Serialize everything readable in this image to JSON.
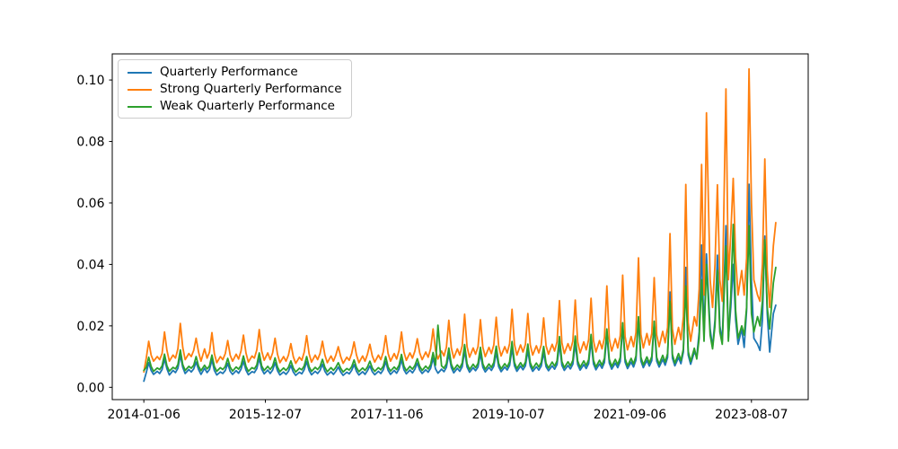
{
  "chart_data": {
    "type": "line",
    "title": "",
    "xlabel": "",
    "ylabel": "",
    "background": "#ffffff",
    "frame_color": "#000000",
    "legend_location": "upper left",
    "x_unit": "weeks since first tick (weekly samples)",
    "x_axis": {
      "tick_labels": [
        "2014-01-06",
        "2015-12-07",
        "2017-11-06",
        "2019-10-07",
        "2021-09-06",
        "2023-08-07"
      ],
      "tick_weeks": [
        0,
        100,
        200,
        300,
        400,
        500
      ],
      "lim_weeks": [
        -26,
        546.7
      ]
    },
    "y_axis": {
      "tick_labels": [
        "0.00",
        "0.02",
        "0.04",
        "0.06",
        "0.08",
        "0.10"
      ],
      "tick_values": [
        0.0,
        0.02,
        0.04,
        0.06,
        0.08,
        0.1
      ],
      "lim": [
        -0.004,
        0.1085
      ]
    },
    "x_weeks": [
      0,
      2,
      4,
      6,
      8,
      11,
      13,
      15,
      17,
      19,
      21,
      24,
      26,
      28,
      30,
      32,
      34,
      37,
      39,
      41,
      43,
      45,
      47,
      50,
      52,
      54,
      56,
      58,
      60,
      63,
      65,
      67,
      69,
      71,
      73,
      76,
      78,
      80,
      82,
      84,
      86,
      89,
      91,
      93,
      95,
      97,
      99,
      102,
      104,
      106,
      108,
      110,
      112,
      115,
      117,
      119,
      121,
      123,
      125,
      128,
      130,
      132,
      134,
      136,
      138,
      141,
      143,
      145,
      147,
      149,
      151,
      154,
      156,
      158,
      160,
      162,
      164,
      167,
      169,
      171,
      173,
      175,
      177,
      180,
      182,
      184,
      186,
      188,
      190,
      193,
      195,
      197,
      199,
      201,
      203,
      206,
      208,
      210,
      212,
      214,
      216,
      219,
      221,
      223,
      225,
      227,
      229,
      232,
      234,
      236,
      238,
      240,
      242,
      245,
      247,
      249,
      251,
      253,
      255,
      258,
      260,
      262,
      264,
      266,
      268,
      271,
      273,
      275,
      277,
      279,
      281,
      284,
      286,
      288,
      290,
      292,
      294,
      297,
      299,
      301,
      303,
      305,
      307,
      310,
      312,
      314,
      316,
      318,
      320,
      323,
      325,
      327,
      329,
      331,
      333,
      336,
      338,
      340,
      342,
      344,
      346,
      349,
      351,
      353,
      355,
      357,
      359,
      362,
      364,
      366,
      368,
      370,
      372,
      375,
      377,
      379,
      381,
      383,
      385,
      388,
      390,
      392,
      394,
      396,
      398,
      401,
      403,
      405,
      407,
      409,
      411,
      414,
      416,
      418,
      420,
      422,
      424,
      427,
      429,
      431,
      433,
      435,
      437,
      440,
      442,
      444,
      446,
      448,
      450,
      453,
      455,
      457,
      459,
      461,
      463,
      466,
      468,
      470,
      472,
      474,
      476,
      479,
      481,
      483,
      485,
      487,
      489,
      492,
      494,
      496,
      498,
      500,
      502,
      505,
      507,
      509,
      511,
      513,
      515,
      518,
      520
    ],
    "series": [
      {
        "name": "Quarterly Performance",
        "color": "#1f77b4",
        "values": [
          0.002,
          0.0048,
          0.008,
          0.0055,
          0.0042,
          0.0052,
          0.0045,
          0.0058,
          0.0092,
          0.006,
          0.004,
          0.0055,
          0.0048,
          0.0062,
          0.0105,
          0.0065,
          0.0045,
          0.0058,
          0.005,
          0.006,
          0.0082,
          0.0058,
          0.0042,
          0.0062,
          0.0048,
          0.0058,
          0.009,
          0.0055,
          0.004,
          0.005,
          0.0045,
          0.0055,
          0.0078,
          0.0052,
          0.0042,
          0.0054,
          0.0046,
          0.0059,
          0.0085,
          0.0056,
          0.0041,
          0.0051,
          0.0048,
          0.0061,
          0.0094,
          0.0059,
          0.0044,
          0.0056,
          0.0045,
          0.0056,
          0.008,
          0.0054,
          0.004,
          0.005,
          0.0042,
          0.0052,
          0.0071,
          0.005,
          0.0039,
          0.0049,
          0.0044,
          0.0058,
          0.0084,
          0.0055,
          0.0041,
          0.0052,
          0.0045,
          0.0055,
          0.0075,
          0.0052,
          0.004,
          0.0051,
          0.0042,
          0.0052,
          0.0066,
          0.005,
          0.0039,
          0.0049,
          0.0044,
          0.0055,
          0.0074,
          0.0052,
          0.004,
          0.0051,
          0.0042,
          0.0054,
          0.007,
          0.0051,
          0.0041,
          0.0052,
          0.0045,
          0.0057,
          0.0084,
          0.0055,
          0.0042,
          0.0055,
          0.0046,
          0.006,
          0.009,
          0.0057,
          0.0044,
          0.0056,
          0.0047,
          0.0059,
          0.0079,
          0.0056,
          0.0045,
          0.0057,
          0.0049,
          0.0062,
          0.0095,
          0.006,
          0.0046,
          0.0059,
          0.0051,
          0.0065,
          0.0109,
          0.0064,
          0.0047,
          0.0062,
          0.0052,
          0.0067,
          0.0119,
          0.0066,
          0.0049,
          0.0064,
          0.0054,
          0.0066,
          0.011,
          0.0065,
          0.005,
          0.0065,
          0.0055,
          0.0069,
          0.0114,
          0.0067,
          0.0051,
          0.0066,
          0.0056,
          0.0071,
          0.0127,
          0.007,
          0.0052,
          0.0069,
          0.0057,
          0.007,
          0.012,
          0.0069,
          0.0052,
          0.0067,
          0.0056,
          0.0069,
          0.0113,
          0.0067,
          0.0054,
          0.007,
          0.0059,
          0.0074,
          0.0141,
          0.0072,
          0.0055,
          0.0071,
          0.006,
          0.0075,
          0.0142,
          0.0074,
          0.0056,
          0.0074,
          0.0061,
          0.0077,
          0.0152,
          0.0076,
          0.0057,
          0.0076,
          0.0062,
          0.0081,
          0.0173,
          0.0079,
          0.0059,
          0.0079,
          0.0064,
          0.0084,
          0.02,
          0.0082,
          0.0061,
          0.0082,
          0.0066,
          0.0089,
          0.0225,
          0.0086,
          0.0064,
          0.0087,
          0.0069,
          0.0087,
          0.0205,
          0.0085,
          0.0066,
          0.0091,
          0.0072,
          0.0097,
          0.031,
          0.0095,
          0.007,
          0.0097,
          0.0077,
          0.0115,
          0.039,
          0.0105,
          0.0075,
          0.0115,
          0.01,
          0.018,
          0.0463,
          0.017,
          0.0434,
          0.019,
          0.013,
          0.022,
          0.043,
          0.02,
          0.015,
          0.0526,
          0.016,
          0.026,
          0.04,
          0.022,
          0.014,
          0.019,
          0.013,
          0.025,
          0.0661,
          0.035,
          0.016,
          0.014,
          0.012,
          0.022,
          0.0492,
          0.024,
          0.0115,
          0.024,
          0.0267
        ]
      },
      {
        "name": "Strong Quarterly Performance",
        "color": "#ff7f0e",
        "values": [
          0.005,
          0.0095,
          0.015,
          0.0105,
          0.0085,
          0.01,
          0.009,
          0.011,
          0.018,
          0.012,
          0.0085,
          0.0105,
          0.0095,
          0.0125,
          0.0208,
          0.013,
          0.009,
          0.011,
          0.01,
          0.012,
          0.016,
          0.0115,
          0.0085,
          0.0125,
          0.0095,
          0.0115,
          0.0178,
          0.011,
          0.008,
          0.01,
          0.009,
          0.011,
          0.0152,
          0.0105,
          0.0085,
          0.0108,
          0.0092,
          0.0118,
          0.017,
          0.0112,
          0.0082,
          0.0102,
          0.0095,
          0.0122,
          0.0188,
          0.0118,
          0.0088,
          0.0112,
          0.009,
          0.0112,
          0.016,
          0.0108,
          0.008,
          0.01,
          0.0085,
          0.0105,
          0.0142,
          0.01,
          0.0078,
          0.0098,
          0.0088,
          0.0115,
          0.0168,
          0.011,
          0.0082,
          0.0105,
          0.009,
          0.011,
          0.015,
          0.0105,
          0.008,
          0.0102,
          0.0085,
          0.0105,
          0.0132,
          0.01,
          0.0078,
          0.0098,
          0.0088,
          0.011,
          0.0148,
          0.0105,
          0.008,
          0.0102,
          0.0085,
          0.0108,
          0.014,
          0.0102,
          0.0082,
          0.0105,
          0.009,
          0.0115,
          0.0168,
          0.011,
          0.0085,
          0.011,
          0.0092,
          0.012,
          0.018,
          0.0115,
          0.0088,
          0.0112,
          0.0095,
          0.0118,
          0.0158,
          0.0112,
          0.009,
          0.0115,
          0.0098,
          0.0125,
          0.019,
          0.012,
          0.0092,
          0.0118,
          0.0102,
          0.013,
          0.0218,
          0.0128,
          0.0095,
          0.0125,
          0.0105,
          0.0135,
          0.0238,
          0.0132,
          0.0098,
          0.0128,
          0.0108,
          0.0132,
          0.022,
          0.013,
          0.01,
          0.013,
          0.011,
          0.0138,
          0.0228,
          0.0135,
          0.0102,
          0.0132,
          0.0112,
          0.0142,
          0.0254,
          0.014,
          0.0105,
          0.0138,
          0.0115,
          0.014,
          0.024,
          0.0138,
          0.0105,
          0.0135,
          0.0112,
          0.0138,
          0.0226,
          0.0135,
          0.0108,
          0.014,
          0.0118,
          0.0148,
          0.0282,
          0.0145,
          0.011,
          0.0142,
          0.012,
          0.015,
          0.0284,
          0.0148,
          0.0112,
          0.0148,
          0.0122,
          0.0155,
          0.029,
          0.0152,
          0.0115,
          0.0152,
          0.0125,
          0.0162,
          0.033,
          0.0158,
          0.0118,
          0.0158,
          0.0128,
          0.0168,
          0.0365,
          0.0165,
          0.0122,
          0.0165,
          0.0132,
          0.0178,
          0.0421,
          0.0172,
          0.0128,
          0.0175,
          0.0138,
          0.0175,
          0.0357,
          0.017,
          0.0132,
          0.0182,
          0.0145,
          0.0195,
          0.05,
          0.019,
          0.014,
          0.0195,
          0.0155,
          0.023,
          0.066,
          0.021,
          0.015,
          0.023,
          0.02,
          0.032,
          0.0725,
          0.03,
          0.0893,
          0.035,
          0.026,
          0.04,
          0.0659,
          0.035,
          0.028,
          0.0971,
          0.035,
          0.05,
          0.068,
          0.042,
          0.03,
          0.038,
          0.03,
          0.042,
          0.1036,
          0.06,
          0.035,
          0.03,
          0.028,
          0.04,
          0.0743,
          0.038,
          0.026,
          0.046,
          0.0536
        ]
      },
      {
        "name": "Weak Quarterly Performance",
        "color": "#2ca02c",
        "values": [
          0.0055,
          0.0065,
          0.0098,
          0.0068,
          0.0052,
          0.0063,
          0.0058,
          0.007,
          0.0108,
          0.007,
          0.0053,
          0.0065,
          0.006,
          0.0074,
          0.0122,
          0.0074,
          0.0055,
          0.0068,
          0.0062,
          0.0072,
          0.01,
          0.0069,
          0.0054,
          0.0072,
          0.006,
          0.007,
          0.0105,
          0.0068,
          0.0052,
          0.0064,
          0.0058,
          0.0068,
          0.0094,
          0.0066,
          0.0053,
          0.0066,
          0.0059,
          0.0071,
          0.0102,
          0.0068,
          0.0052,
          0.0064,
          0.006,
          0.0073,
          0.0112,
          0.007,
          0.0055,
          0.0068,
          0.0058,
          0.0069,
          0.0096,
          0.0066,
          0.0051,
          0.0063,
          0.0055,
          0.0065,
          0.0086,
          0.0063,
          0.005,
          0.0062,
          0.0057,
          0.007,
          0.01,
          0.0067,
          0.0052,
          0.0065,
          0.0058,
          0.0068,
          0.0091,
          0.0065,
          0.0051,
          0.0064,
          0.0055,
          0.0065,
          0.008,
          0.0062,
          0.005,
          0.0061,
          0.0056,
          0.0067,
          0.0089,
          0.0064,
          0.0051,
          0.0063,
          0.0055,
          0.0066,
          0.0085,
          0.0063,
          0.0052,
          0.0064,
          0.0057,
          0.0069,
          0.01,
          0.0066,
          0.0053,
          0.0066,
          0.0058,
          0.0072,
          0.0107,
          0.0069,
          0.0054,
          0.0068,
          0.0059,
          0.0071,
          0.0093,
          0.0068,
          0.0055,
          0.0069,
          0.006,
          0.0074,
          0.0113,
          0.0072,
          0.0202,
          0.007,
          0.0062,
          0.0077,
          0.0128,
          0.0075,
          0.0057,
          0.0073,
          0.0063,
          0.0079,
          0.0139,
          0.0077,
          0.0058,
          0.0075,
          0.0064,
          0.0078,
          0.013,
          0.0076,
          0.0059,
          0.0076,
          0.0065,
          0.0081,
          0.0134,
          0.0078,
          0.006,
          0.0077,
          0.0066,
          0.0083,
          0.0149,
          0.0081,
          0.0061,
          0.008,
          0.0067,
          0.0082,
          0.0141,
          0.008,
          0.0061,
          0.0079,
          0.0066,
          0.0081,
          0.0133,
          0.0078,
          0.0063,
          0.0082,
          0.0069,
          0.0086,
          0.0165,
          0.0084,
          0.0064,
          0.0083,
          0.007,
          0.0088,
          0.0167,
          0.0086,
          0.0065,
          0.0086,
          0.0071,
          0.009,
          0.0172,
          0.0088,
          0.0066,
          0.0088,
          0.0072,
          0.0094,
          0.019,
          0.0091,
          0.0068,
          0.0091,
          0.0074,
          0.0097,
          0.021,
          0.0094,
          0.007,
          0.0094,
          0.0076,
          0.0102,
          0.023,
          0.0098,
          0.0073,
          0.0099,
          0.0079,
          0.01,
          0.0215,
          0.0097,
          0.0075,
          0.0104,
          0.0082,
          0.011,
          0.028,
          0.0107,
          0.0079,
          0.011,
          0.0087,
          0.0125,
          0.033,
          0.0117,
          0.0084,
          0.0127,
          0.0092,
          0.016,
          0.035,
          0.015,
          0.04,
          0.017,
          0.0125,
          0.02,
          0.038,
          0.018,
          0.014,
          0.046,
          0.015,
          0.03,
          0.053,
          0.025,
          0.016,
          0.02,
          0.017,
          0.026,
          0.0526,
          0.024,
          0.018,
          0.023,
          0.02,
          0.028,
          0.048,
          0.026,
          0.019,
          0.034,
          0.039
        ]
      }
    ]
  }
}
